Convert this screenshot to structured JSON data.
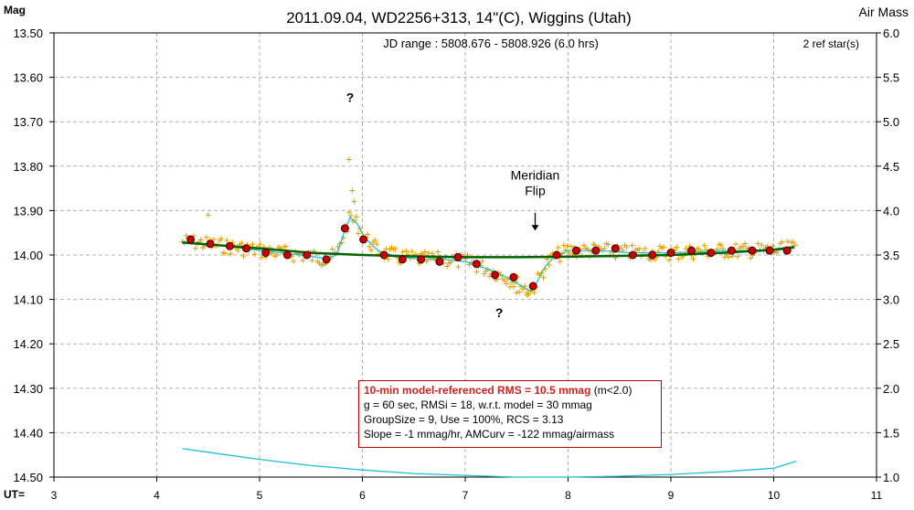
{
  "chart_data": {
    "type": "scatter",
    "title": "2011.09.04, WD2256+313, 14\"(C), Wiggins (Utah)",
    "subtitle": "JD range : 5808.676 - 5808.926 (6.0 hrs)",
    "ylabel": "Mag",
    "y2label": "Air Mass",
    "xlabel": "UT=",
    "ref_stars": "2 ref star(s)",
    "xlim": [
      3,
      11
    ],
    "ylim": [
      14.5,
      13.5
    ],
    "y2lim": [
      1.0,
      6.0
    ],
    "x_ticks": [
      "3",
      "4",
      "5",
      "6",
      "7",
      "8",
      "9",
      "10",
      "11"
    ],
    "y_ticks": [
      "13.50",
      "13.60",
      "13.70",
      "13.80",
      "13.90",
      "14.00",
      "14.10",
      "14.20",
      "14.30",
      "14.40",
      "14.50"
    ],
    "y2_ticks": [
      "6.0",
      "5.5",
      "5.0",
      "4.5",
      "4.0",
      "3.5",
      "3.0",
      "2.5",
      "2.0",
      "1.5",
      "1.0"
    ],
    "grid": true,
    "annotations": [
      {
        "text": "?",
        "x": 5.88,
        "y": 13.655
      },
      {
        "text": "?",
        "x": 7.33,
        "y": 14.14
      },
      {
        "text": "Meridian",
        "x": 7.68,
        "y": 13.83
      },
      {
        "text": "Flip",
        "x": 7.68,
        "y": 13.865
      }
    ],
    "meridian_flip": {
      "x": 7.68,
      "y_from": 13.905,
      "y_to": 13.945
    },
    "colors": {
      "individual": "#e0a000",
      "group": "#cc0000",
      "model": "#006400",
      "smooth": "#20c0d0",
      "airmass": "#20c0d0",
      "grid": "#b0b0b0"
    },
    "group_means": [
      {
        "x": 4.33,
        "y": 13.965
      },
      {
        "x": 4.52,
        "y": 13.975
      },
      {
        "x": 4.71,
        "y": 13.98
      },
      {
        "x": 4.87,
        "y": 13.985
      },
      {
        "x": 5.06,
        "y": 13.995
      },
      {
        "x": 5.27,
        "y": 14.0
      },
      {
        "x": 5.46,
        "y": 14.0
      },
      {
        "x": 5.65,
        "y": 14.01
      },
      {
        "x": 5.83,
        "y": 13.94
      },
      {
        "x": 6.01,
        "y": 13.965
      },
      {
        "x": 6.21,
        "y": 14.0
      },
      {
        "x": 6.39,
        "y": 14.01
      },
      {
        "x": 6.57,
        "y": 14.01
      },
      {
        "x": 6.75,
        "y": 14.015
      },
      {
        "x": 6.93,
        "y": 14.005
      },
      {
        "x": 7.11,
        "y": 14.02
      },
      {
        "x": 7.29,
        "y": 14.045
      },
      {
        "x": 7.47,
        "y": 14.05
      },
      {
        "x": 7.66,
        "y": 14.07
      },
      {
        "x": 7.89,
        "y": 14.0
      },
      {
        "x": 8.08,
        "y": 13.99
      },
      {
        "x": 8.27,
        "y": 13.99
      },
      {
        "x": 8.46,
        "y": 13.985
      },
      {
        "x": 8.63,
        "y": 14.0
      },
      {
        "x": 8.82,
        "y": 14.0
      },
      {
        "x": 9.0,
        "y": 13.995
      },
      {
        "x": 9.2,
        "y": 13.99
      },
      {
        "x": 9.39,
        "y": 13.995
      },
      {
        "x": 9.59,
        "y": 13.99
      },
      {
        "x": 9.79,
        "y": 13.99
      },
      {
        "x": 9.96,
        "y": 13.99
      },
      {
        "x": 10.13,
        "y": 13.99
      }
    ],
    "model_mag": [
      {
        "x": 4.25,
        "y": 13.972
      },
      {
        "x": 5.0,
        "y": 13.985
      },
      {
        "x": 5.5,
        "y": 13.995
      },
      {
        "x": 6.0,
        "y": 14.0
      },
      {
        "x": 6.5,
        "y": 14.003
      },
      {
        "x": 7.0,
        "y": 14.005
      },
      {
        "x": 7.5,
        "y": 14.005
      },
      {
        "x": 8.0,
        "y": 14.004
      },
      {
        "x": 8.5,
        "y": 14.002
      },
      {
        "x": 9.0,
        "y": 14.0
      },
      {
        "x": 9.5,
        "y": 13.995
      },
      {
        "x": 10.0,
        "y": 13.988
      },
      {
        "x": 10.2,
        "y": 13.982
      }
    ],
    "smooth_mag": [
      {
        "x": 4.3,
        "y": 13.97
      },
      {
        "x": 4.6,
        "y": 13.978
      },
      {
        "x": 5.0,
        "y": 13.99
      },
      {
        "x": 5.4,
        "y": 14.0
      },
      {
        "x": 5.65,
        "y": 14.008
      },
      {
        "x": 5.75,
        "y": 14.0
      },
      {
        "x": 5.82,
        "y": 13.95
      },
      {
        "x": 5.88,
        "y": 13.915
      },
      {
        "x": 5.95,
        "y": 13.93
      },
      {
        "x": 6.02,
        "y": 13.96
      },
      {
        "x": 6.15,
        "y": 13.99
      },
      {
        "x": 6.35,
        "y": 14.005
      },
      {
        "x": 6.6,
        "y": 14.01
      },
      {
        "x": 6.8,
        "y": 14.01
      },
      {
        "x": 7.0,
        "y": 14.015
      },
      {
        "x": 7.2,
        "y": 14.03
      },
      {
        "x": 7.4,
        "y": 14.05
      },
      {
        "x": 7.55,
        "y": 14.07
      },
      {
        "x": 7.64,
        "y": 14.082
      },
      {
        "x": 7.7,
        "y": 14.06
      },
      {
        "x": 7.78,
        "y": 14.025
      },
      {
        "x": 7.86,
        "y": 14.005
      },
      {
        "x": 8.0,
        "y": 13.99
      },
      {
        "x": 8.3,
        "y": 13.99
      },
      {
        "x": 8.6,
        "y": 13.995
      },
      {
        "x": 9.0,
        "y": 13.995
      },
      {
        "x": 9.5,
        "y": 13.99
      },
      {
        "x": 10.0,
        "y": 13.99
      },
      {
        "x": 10.2,
        "y": 13.985
      }
    ],
    "airmass": [
      {
        "x": 4.25,
        "y": 1.32
      },
      {
        "x": 4.5,
        "y": 1.28
      },
      {
        "x": 5.0,
        "y": 1.2
      },
      {
        "x": 5.5,
        "y": 1.13
      },
      {
        "x": 6.0,
        "y": 1.08
      },
      {
        "x": 6.5,
        "y": 1.04
      },
      {
        "x": 7.0,
        "y": 1.02
      },
      {
        "x": 7.5,
        "y": 1.0
      },
      {
        "x": 8.0,
        "y": 1.0
      },
      {
        "x": 8.5,
        "y": 1.01
      },
      {
        "x": 9.0,
        "y": 1.03
      },
      {
        "x": 9.5,
        "y": 1.06
      },
      {
        "x": 10.0,
        "y": 1.1
      },
      {
        "x": 10.22,
        "y": 1.18
      }
    ]
  },
  "stats_box": {
    "rms_label": "10-min model-referenced RMS = 10.5 mmag",
    "rms_suffix": " (m<2.0)",
    "line2": "g = 60 sec, RMSi = 18, w.r.t. model = 30 mmag",
    "line3": "GroupSize = 9, Use = 100%, RCS = 3.13",
    "line4": "Slope = -1 mmag/hr, AMCurv = -122 mmag/airmass"
  }
}
